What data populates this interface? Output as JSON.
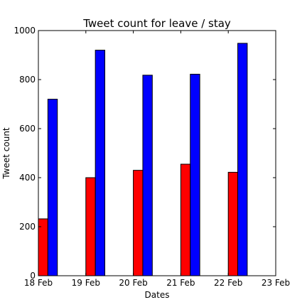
{
  "chart_data": {
    "type": "bar",
    "title": "Tweet count for leave / stay",
    "xlabel": "Dates",
    "ylabel": "Tweet count",
    "categories": [
      "18 Feb",
      "19 Feb",
      "20 Feb",
      "21 Feb",
      "22 Feb"
    ],
    "x_tick_labels": [
      "18 Feb",
      "19 Feb",
      "20 Feb",
      "21 Feb",
      "22 Feb",
      "23 Feb"
    ],
    "x_range": [
      0,
      5
    ],
    "ylim": [
      0,
      1000
    ],
    "y_ticks": [
      0,
      200,
      400,
      600,
      800,
      1000
    ],
    "series": [
      {
        "name": "leave",
        "color": "#ff0000",
        "values": [
          232,
          400,
          430,
          455,
          422
        ]
      },
      {
        "name": "stay",
        "color": "#0000ff",
        "values": [
          720,
          920,
          818,
          822,
          948
        ]
      }
    ]
  }
}
